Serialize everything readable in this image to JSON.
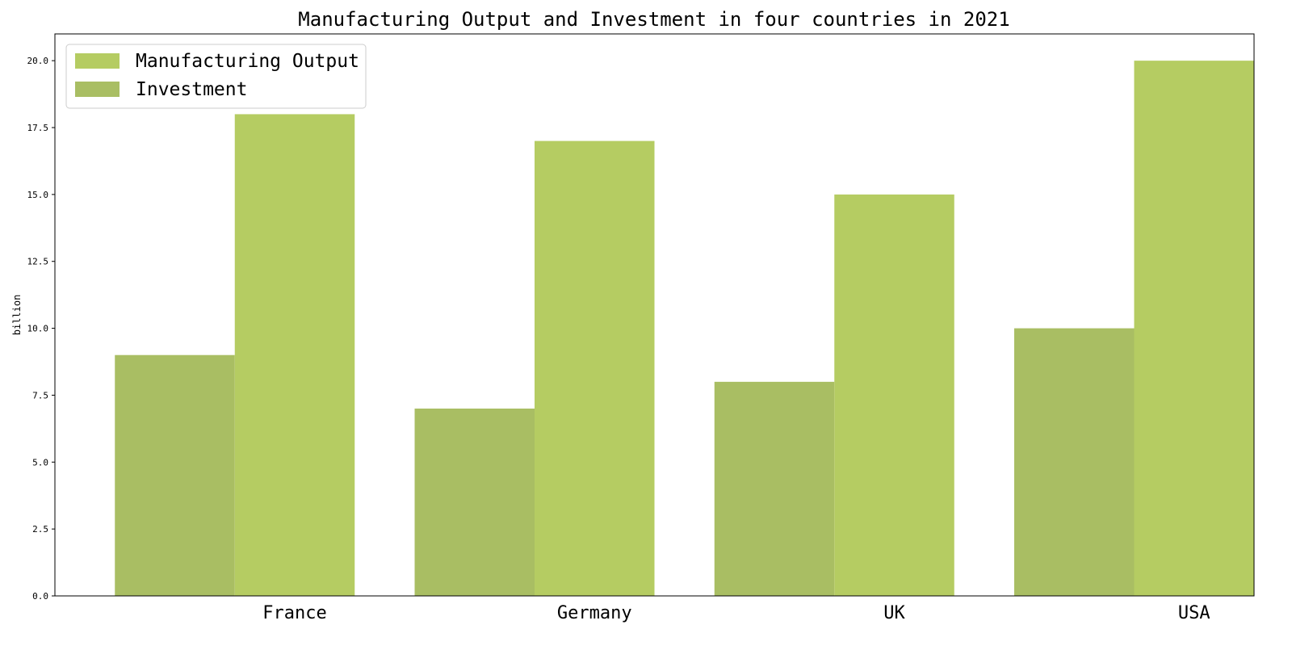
{
  "chart_data": {
    "type": "bar",
    "title": "Manufacturing Output and Investment in four countries in 2021",
    "xlabel": "",
    "ylabel": "billion",
    "categories": [
      "France",
      "Germany",
      "UK",
      "USA"
    ],
    "series": [
      {
        "name": "Manufacturing Output",
        "values": [
          18,
          17,
          15,
          20
        ],
        "color": "#b5cc62"
      },
      {
        "name": "Investment",
        "values": [
          9,
          7,
          8,
          10
        ],
        "color": "#a9be63"
      }
    ],
    "ylim": [
      0,
      21
    ],
    "yticks": [
      "0.0",
      "2.5",
      "5.0",
      "7.5",
      "10.0",
      "12.5",
      "15.0",
      "17.5",
      "20.0"
    ],
    "grid": false,
    "legend_position": "top-left"
  }
}
